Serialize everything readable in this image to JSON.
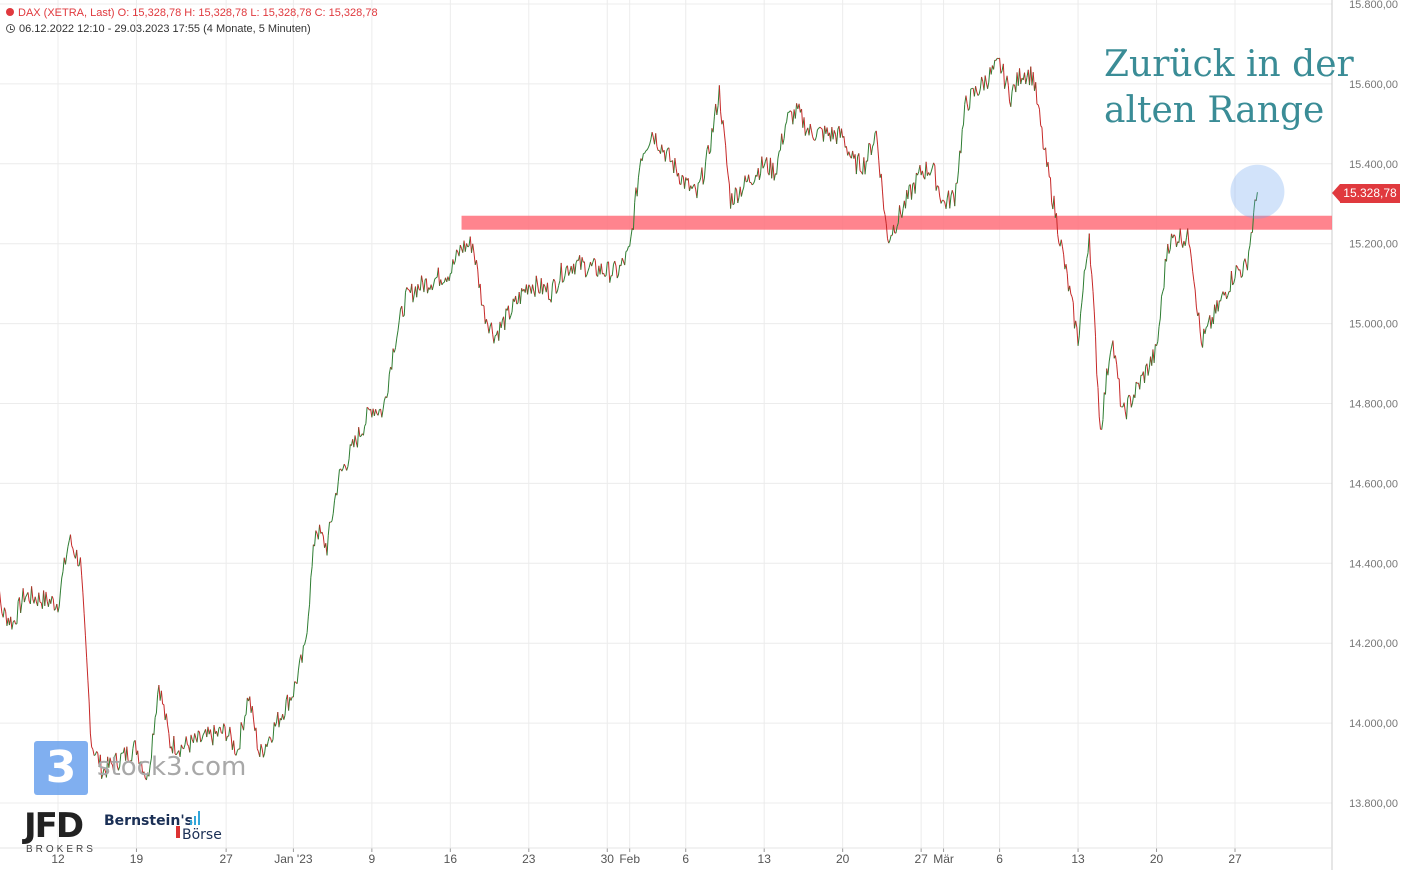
{
  "header": {
    "instrument_line": "DAX (XETRA, Last)  O: 15,328,78  H: 15,328,78  L: 15,328,78  C: 15,328,78",
    "range_line": "06.12.2022 12:10 - 29.03.2023 17:55   (4 Monate, 5 Minuten)"
  },
  "annotation": {
    "line1": "Zurück in der",
    "line2": "alten Range"
  },
  "price_tag": "15.328,78",
  "logos": {
    "stock3_mark": "3",
    "stock3_text": "stock3.com",
    "jfd": "JFD",
    "jfd_sub": "BROKERS",
    "bernstein": "Bernstein's",
    "boerse": "Börse"
  },
  "colors": {
    "up": "#2e7d32",
    "down": "#c62828",
    "resistance_band": "#ff6f7a",
    "highlight_circle": "#6aa2ee",
    "annotation": "#3a8c96",
    "price_tag": "#e0393e"
  },
  "chart_data": {
    "type": "line",
    "title": "DAX (XETRA, Last)",
    "xlabel": "",
    "ylabel": "",
    "ylim": [
      13700,
      15800
    ],
    "grid": true,
    "y_ticks": [
      "13.800,00",
      "14.000,00",
      "14.200,00",
      "14.400,00",
      "14.600,00",
      "14.800,00",
      "15.000,00",
      "15.200,00",
      "15.400,00",
      "15.600,00",
      "15.800,00"
    ],
    "y_tick_values": [
      13800,
      14000,
      14200,
      14400,
      14600,
      14800,
      15000,
      15200,
      15400,
      15600,
      15800
    ],
    "x_ticks": [
      "12",
      "19",
      "27",
      "Jan '23",
      "9",
      "16",
      "23",
      "30",
      "Feb",
      "6",
      "13",
      "20",
      "27",
      "Mär",
      "6",
      "13",
      "20",
      "27"
    ],
    "x_tick_dates": [
      "2022-12-12",
      "2022-12-19",
      "2022-12-27",
      "2023-01-02",
      "2023-01-09",
      "2023-01-16",
      "2023-01-23",
      "2023-01-30",
      "2023-02-01",
      "2023-02-06",
      "2023-02-13",
      "2023-02-20",
      "2023-02-27",
      "2023-03-01",
      "2023-03-06",
      "2023-03-13",
      "2023-03-20",
      "2023-03-27"
    ],
    "series": [
      {
        "values": [
          {
            "x": "2022-12-06",
            "y": 14420
          },
          {
            "x": "2022-12-07",
            "y": 14280
          },
          {
            "x": "2022-12-08",
            "y": 14250
          },
          {
            "x": "2022-12-09",
            "y": 14320
          },
          {
            "x": "2022-12-12",
            "y": 14300
          },
          {
            "x": "2022-12-13",
            "y": 14460
          },
          {
            "x": "2022-12-14",
            "y": 14400
          },
          {
            "x": "2022-12-15",
            "y": 13950
          },
          {
            "x": "2022-12-16",
            "y": 13880
          },
          {
            "x": "2022-12-19",
            "y": 13940
          },
          {
            "x": "2022-12-20",
            "y": 13860
          },
          {
            "x": "2022-12-21",
            "y": 14100
          },
          {
            "x": "2022-12-22",
            "y": 13950
          },
          {
            "x": "2022-12-23",
            "y": 13940
          },
          {
            "x": "2022-12-27",
            "y": 13980
          },
          {
            "x": "2022-12-28",
            "y": 13930
          },
          {
            "x": "2022-12-29",
            "y": 14070
          },
          {
            "x": "2022-12-30",
            "y": 13920
          },
          {
            "x": "2023-01-02",
            "y": 14080
          },
          {
            "x": "2023-01-03",
            "y": 14180
          },
          {
            "x": "2023-01-04",
            "y": 14490
          },
          {
            "x": "2023-01-05",
            "y": 14440
          },
          {
            "x": "2023-01-06",
            "y": 14610
          },
          {
            "x": "2023-01-09",
            "y": 14790
          },
          {
            "x": "2023-01-10",
            "y": 14780
          },
          {
            "x": "2023-01-11",
            "y": 14950
          },
          {
            "x": "2023-01-12",
            "y": 15060
          },
          {
            "x": "2023-01-13",
            "y": 15090
          },
          {
            "x": "2023-01-16",
            "y": 15130
          },
          {
            "x": "2023-01-17",
            "y": 15190
          },
          {
            "x": "2023-01-18",
            "y": 15200
          },
          {
            "x": "2023-01-19",
            "y": 15030
          },
          {
            "x": "2023-01-20",
            "y": 14970
          },
          {
            "x": "2023-01-23",
            "y": 15100
          },
          {
            "x": "2023-01-24",
            "y": 15090
          },
          {
            "x": "2023-01-25",
            "y": 15080
          },
          {
            "x": "2023-01-26",
            "y": 15130
          },
          {
            "x": "2023-01-27",
            "y": 15150
          },
          {
            "x": "2023-01-30",
            "y": 15130
          },
          {
            "x": "2023-01-31",
            "y": 15130
          },
          {
            "x": "2023-02-01",
            "y": 15180
          },
          {
            "x": "2023-02-02",
            "y": 15420
          },
          {
            "x": "2023-02-03",
            "y": 15480
          },
          {
            "x": "2023-02-06",
            "y": 15350
          },
          {
            "x": "2023-02-07",
            "y": 15320
          },
          {
            "x": "2023-02-08",
            "y": 15420
          },
          {
            "x": "2023-02-09",
            "y": 15580
          },
          {
            "x": "2023-02-10",
            "y": 15310
          },
          {
            "x": "2023-02-13",
            "y": 15400
          },
          {
            "x": "2023-02-14",
            "y": 15380
          },
          {
            "x": "2023-02-15",
            "y": 15510
          },
          {
            "x": "2023-02-16",
            "y": 15530
          },
          {
            "x": "2023-02-17",
            "y": 15480
          },
          {
            "x": "2023-02-20",
            "y": 15470
          },
          {
            "x": "2023-02-21",
            "y": 15400
          },
          {
            "x": "2023-02-22",
            "y": 15400
          },
          {
            "x": "2023-02-23",
            "y": 15480
          },
          {
            "x": "2023-02-24",
            "y": 15210
          },
          {
            "x": "2023-02-27",
            "y": 15380
          },
          {
            "x": "2023-02-28",
            "y": 15390
          },
          {
            "x": "2023-03-01",
            "y": 15300
          },
          {
            "x": "2023-03-02",
            "y": 15320
          },
          {
            "x": "2023-03-03",
            "y": 15550
          },
          {
            "x": "2023-03-06",
            "y": 15650
          },
          {
            "x": "2023-03-07",
            "y": 15570
          },
          {
            "x": "2023-03-08",
            "y": 15630
          },
          {
            "x": "2023-03-09",
            "y": 15620
          },
          {
            "x": "2023-03-10",
            "y": 15430
          },
          {
            "x": "2023-03-13",
            "y": 14960
          },
          {
            "x": "2023-03-14",
            "y": 15230
          },
          {
            "x": "2023-03-15",
            "y": 14730
          },
          {
            "x": "2023-03-16",
            "y": 14970
          },
          {
            "x": "2023-03-17",
            "y": 14770
          },
          {
            "x": "2023-03-20",
            "y": 14930
          },
          {
            "x": "2023-03-21",
            "y": 15200
          },
          {
            "x": "2023-03-22",
            "y": 15220
          },
          {
            "x": "2023-03-23",
            "y": 15210
          },
          {
            "x": "2023-03-24",
            "y": 14950
          },
          {
            "x": "2023-03-27",
            "y": 15130
          },
          {
            "x": "2023-03-28",
            "y": 15140
          },
          {
            "x": "2023-03-29",
            "y": 15329
          }
        ]
      }
    ],
    "annotations": [
      {
        "type": "horizontal-band",
        "from": "2023-01-17",
        "y_from": 15235,
        "y_to": 15270
      },
      {
        "type": "circle",
        "x": "2023-03-29",
        "y": 15330
      },
      {
        "type": "text",
        "text": "Zurück in der alten Range"
      }
    ],
    "last_value": 15328.78
  }
}
